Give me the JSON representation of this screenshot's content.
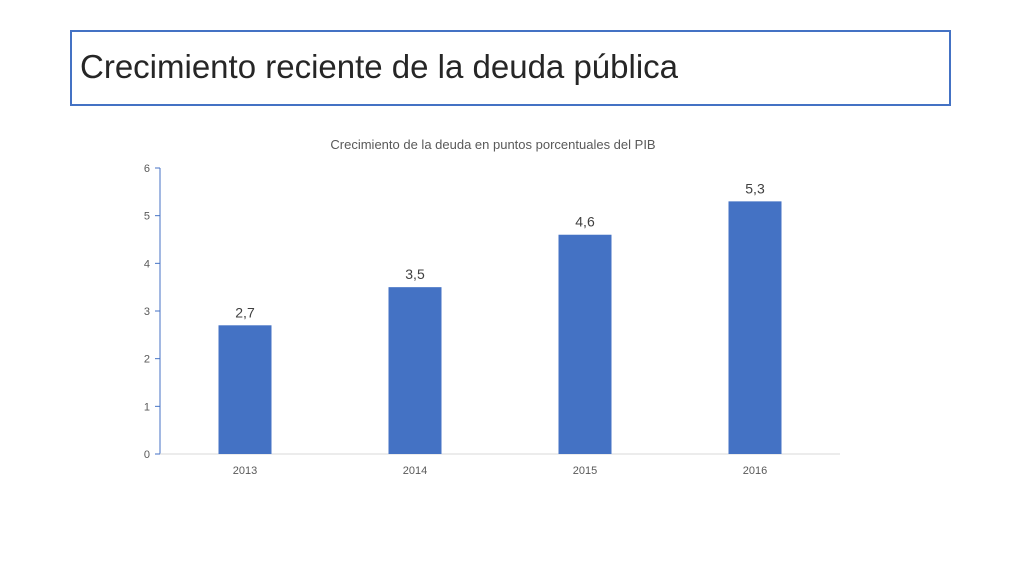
{
  "slide": {
    "title": "Crecimiento reciente de la deuda pública"
  },
  "chart_data": {
    "type": "bar",
    "title": "Crecimiento de la deuda en puntos porcentuales del PIB",
    "categories": [
      "2013",
      "2014",
      "2015",
      "2016"
    ],
    "values": [
      2.7,
      3.5,
      4.6,
      5.3
    ],
    "data_labels": [
      "2,7",
      "3,5",
      "4,6",
      "5,3"
    ],
    "ylim": [
      0,
      6
    ],
    "yticks": [
      "0",
      "1",
      "2",
      "3",
      "4",
      "5",
      "6"
    ],
    "xlabel": "",
    "ylabel": "",
    "grid": false,
    "legend": "none",
    "bar_color": "#4472c4",
    "axis_color": "#4472c4"
  }
}
